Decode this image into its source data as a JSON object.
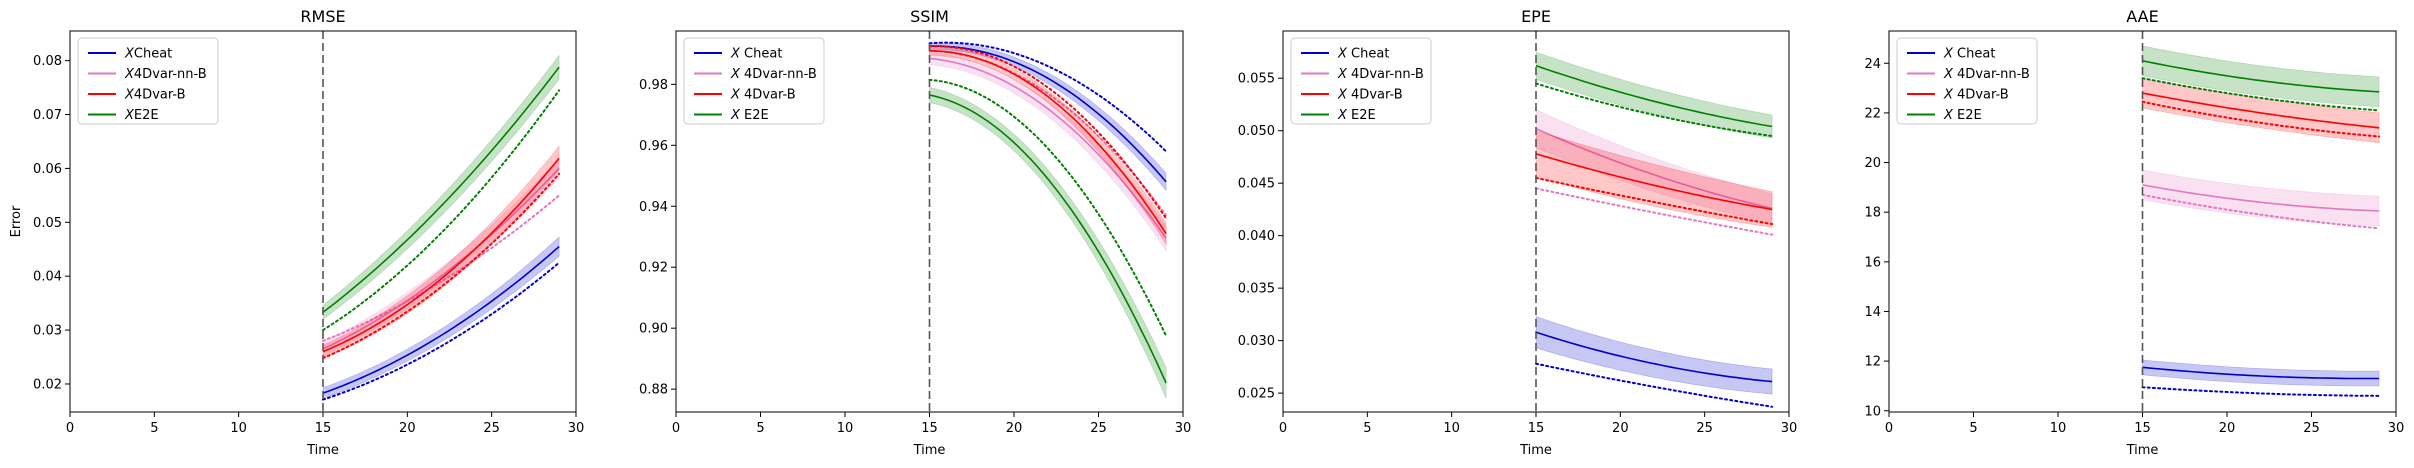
{
  "colors": {
    "cheat": "#0000cc",
    "nn": "#e377c2",
    "b": "#ff0000",
    "e2e": "#008000",
    "vline": "#555555",
    "frame": "#000000"
  },
  "chart_data": [
    {
      "type": "line",
      "title": "RMSE",
      "xlabel": "Time",
      "ylabel": "Error",
      "xlim": [
        0,
        30
      ],
      "ylim": [
        0.0148,
        0.0855
      ],
      "xticks": [
        0,
        5,
        10,
        15,
        20,
        25,
        30
      ],
      "yticks": [
        0.02,
        0.03,
        0.04,
        0.05,
        0.06,
        0.07,
        0.08
      ],
      "ytick_decimals": 2,
      "vline_x": 15,
      "grid": false,
      "legend_position": "top-left",
      "x": [
        15,
        22,
        29
      ],
      "series": [
        {
          "name": "$X$Cheat",
          "key": "cheat",
          "values": [
            0.0183,
            0.029,
            0.0455
          ],
          "band": [
            0.001,
            0.0012,
            0.0018
          ],
          "dotted": [
            0.0171,
            0.027,
            0.0425
          ]
        },
        {
          "name": "$X$4Dvar-nn-B",
          "key": "nn",
          "values": [
            0.0265,
            0.04,
            0.06
          ],
          "band": [
            0.0013,
            0.0016,
            0.0018
          ],
          "dotted": [
            0.028,
            0.039,
            0.055
          ]
        },
        {
          "name": "$X$4Dvar-B",
          "key": "b",
          "values": [
            0.026,
            0.0395,
            0.0619
          ],
          "band": [
            0.0012,
            0.0018,
            0.0022
          ],
          "dotted": [
            0.0248,
            0.038,
            0.059
          ]
        },
        {
          "name": "$X$E2E",
          "key": "e2e",
          "values": [
            0.0333,
            0.053,
            0.0788
          ],
          "band": [
            0.0013,
            0.0018,
            0.0022
          ],
          "dotted": [
            0.03,
            0.048,
            0.0745
          ]
        }
      ]
    },
    {
      "type": "line",
      "title": "SSIM",
      "xlabel": "Time",
      "ylabel": "",
      "xlim": [
        0,
        30
      ],
      "ylim": [
        0.8725,
        0.9975
      ],
      "xticks": [
        0,
        5,
        10,
        15,
        20,
        25,
        30
      ],
      "yticks": [
        0.88,
        0.9,
        0.92,
        0.94,
        0.96,
        0.98
      ],
      "ytick_decimals": 2,
      "vline_x": 15,
      "grid": false,
      "legend_position": "top-left",
      "x": [
        15,
        22,
        29
      ],
      "series": [
        {
          "name": "$X$ Cheat",
          "key": "cheat",
          "values": [
            0.9925,
            0.982,
            0.948
          ],
          "band": [
            0.001,
            0.0018,
            0.0028
          ],
          "dotted": [
            0.9935,
            0.986,
            0.958
          ]
        },
        {
          "name": "$X$ 4Dvar-nn-B",
          "key": "nn",
          "values": [
            0.9885,
            0.972,
            0.9295
          ],
          "band": [
            0.002,
            0.0025,
            0.004
          ],
          "dotted": [
            0.991,
            0.977,
            0.937
          ]
        },
        {
          "name": "$X$ 4Dvar-B",
          "key": "b",
          "values": [
            0.991,
            0.976,
            0.931
          ],
          "band": [
            0.0015,
            0.002,
            0.0035
          ],
          "dotted": [
            0.9925,
            0.979,
            0.936
          ]
        },
        {
          "name": "$X$ E2E",
          "key": "e2e",
          "values": [
            0.9765,
            0.949,
            0.882
          ],
          "band": [
            0.0025,
            0.003,
            0.005
          ],
          "dotted": [
            0.9815,
            0.959,
            0.8975
          ]
        }
      ]
    },
    {
      "type": "line",
      "title": "EPE",
      "xlabel": "Time",
      "ylabel": "",
      "xlim": [
        0,
        30
      ],
      "ylim": [
        0.0232,
        0.0595
      ],
      "xticks": [
        0,
        5,
        10,
        15,
        20,
        25,
        30
      ],
      "yticks": [
        0.025,
        0.03,
        0.035,
        0.04,
        0.045,
        0.05,
        0.055
      ],
      "ytick_decimals": 3,
      "vline_x": 15,
      "grid": false,
      "legend_position": "top-left",
      "x": [
        15,
        22,
        29
      ],
      "series": [
        {
          "name": "$X$ Cheat",
          "key": "cheat",
          "values": [
            0.0308,
            0.0278,
            0.0261
          ],
          "band": [
            0.0015,
            0.0013,
            0.0012
          ],
          "dotted": [
            0.0278,
            0.0256,
            0.0237
          ]
        },
        {
          "name": "$X$ 4Dvar-nn-B",
          "key": "nn",
          "values": [
            0.0502,
            0.0458,
            0.0426
          ],
          "band": [
            0.0018,
            0.0016,
            0.0014
          ],
          "dotted": [
            0.0445,
            0.0422,
            0.0401
          ]
        },
        {
          "name": "$X$ 4Dvar-B",
          "key": "b",
          "values": [
            0.0478,
            0.0448,
            0.0425
          ],
          "band": [
            0.0022,
            0.002,
            0.0017
          ],
          "dotted": [
            0.0455,
            0.0432,
            0.0411
          ]
        },
        {
          "name": "$X$ E2E",
          "key": "e2e",
          "values": [
            0.0562,
            0.0528,
            0.0504
          ],
          "band": [
            0.0013,
            0.0012,
            0.0011
          ],
          "dotted": [
            0.0545,
            0.0515,
            0.0495
          ]
        }
      ]
    },
    {
      "type": "line",
      "title": "AAE",
      "xlabel": "Time",
      "ylabel": "",
      "xlim": [
        0,
        30
      ],
      "ylim": [
        9.95,
        25.3
      ],
      "xticks": [
        0,
        5,
        10,
        15,
        20,
        25,
        30
      ],
      "yticks": [
        10,
        12,
        14,
        16,
        18,
        20,
        22,
        24
      ],
      "ytick_decimals": 0,
      "vline_x": 15,
      "grid": false,
      "legend_position": "top-left",
      "x": [
        15,
        22,
        29
      ],
      "series": [
        {
          "name": "$X$ Cheat",
          "key": "cheat",
          "values": [
            11.75,
            11.4,
            11.3
          ],
          "band": [
            0.3,
            0.3,
            0.3
          ],
          "dotted": [
            10.95,
            10.7,
            10.6
          ]
        },
        {
          "name": "$X$ 4Dvar-nn-B",
          "key": "nn",
          "values": [
            19.1,
            18.4,
            18.05
          ],
          "band": [
            0.6,
            0.6,
            0.6
          ],
          "dotted": [
            18.7,
            17.9,
            17.35
          ]
        },
        {
          "name": "$X$ 4Dvar-B",
          "key": "b",
          "values": [
            22.8,
            22.0,
            21.4
          ],
          "band": [
            0.6,
            0.6,
            0.6
          ],
          "dotted": [
            22.45,
            21.6,
            21.05
          ]
        },
        {
          "name": "$X$ E2E",
          "key": "e2e",
          "values": [
            24.1,
            23.3,
            22.85
          ],
          "band": [
            0.6,
            0.6,
            0.6
          ],
          "dotted": [
            23.4,
            22.6,
            22.1
          ]
        }
      ]
    }
  ]
}
